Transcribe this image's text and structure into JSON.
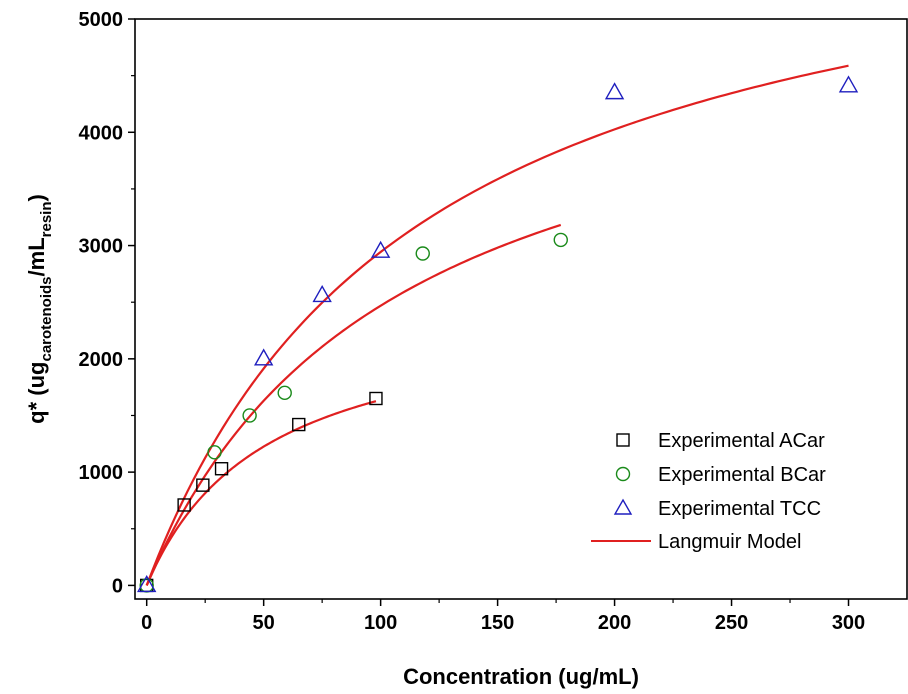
{
  "chart_data": {
    "type": "scatter",
    "xlabel": "Concentration (ug/mL)",
    "ylabel": {
      "main": "q* (ug",
      "sub1": "carotenoids",
      "mid": "/mL",
      "sub2": "resin",
      "end": ")"
    },
    "xlim": [
      -5,
      325
    ],
    "ylim": [
      -120,
      5000
    ],
    "x_ticks": [
      0,
      50,
      100,
      150,
      200,
      250,
      300
    ],
    "y_ticks": [
      0,
      1000,
      2000,
      3000,
      4000,
      5000
    ],
    "x_tick_labels": [
      "0",
      "50",
      "100",
      "150",
      "200",
      "250",
      "300"
    ],
    "y_tick_labels": [
      "0",
      "1000",
      "2000",
      "3000",
      "4000",
      "5000"
    ],
    "grid": false,
    "legend_position": "bottom-right",
    "series": [
      {
        "name": "Experimental ACar",
        "marker": "square",
        "color": "#000000",
        "points": [
          [
            0,
            0
          ],
          [
            16,
            710
          ],
          [
            24,
            885
          ],
          [
            32,
            1030
          ],
          [
            65,
            1420
          ],
          [
            98,
            1650
          ]
        ]
      },
      {
        "name": "Experimental BCar",
        "marker": "circle",
        "color": "#1a8a1a",
        "points": [
          [
            0,
            0
          ],
          [
            29,
            1175
          ],
          [
            44,
            1500
          ],
          [
            59,
            1700
          ],
          [
            118,
            2930
          ],
          [
            177,
            3050
          ]
        ]
      },
      {
        "name": "Experimental TCC",
        "marker": "triangle",
        "color": "#1f1fbf",
        "points": [
          [
            0,
            0
          ],
          [
            50,
            2000
          ],
          [
            75,
            2560
          ],
          [
            100,
            2950
          ],
          [
            200,
            4350
          ],
          [
            300,
            4410
          ]
        ]
      }
    ],
    "model": {
      "name": "Langmuir Model",
      "color": "#e02020",
      "curves": [
        {
          "qmax": 2469,
          "K": 0.0197,
          "xmax": 98
        },
        {
          "qmax": 5093,
          "K": 0.00941,
          "xmax": 177
        },
        {
          "qmax": 6366,
          "K": 0.0086,
          "xmax": 300
        }
      ]
    }
  }
}
